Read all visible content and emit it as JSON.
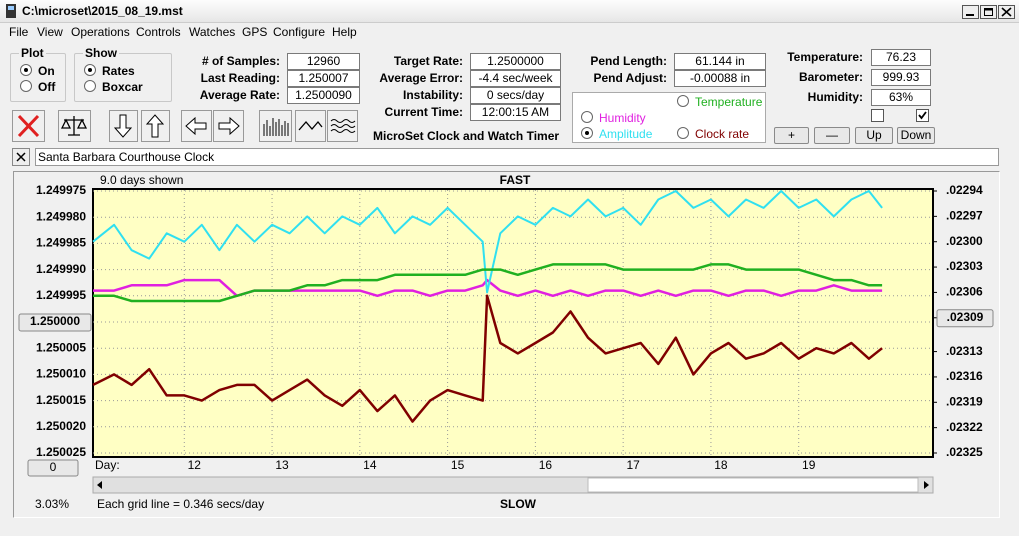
{
  "window": {
    "title": "C:\\microset\\2015_08_19.mst"
  },
  "menu": [
    "File",
    "View",
    "Operations",
    "Controls",
    "Watches",
    "GPS",
    "Configure",
    "Help"
  ],
  "plot_group": {
    "title": "Plot",
    "options": [
      "On",
      "Off"
    ]
  },
  "show_group": {
    "title": "Show",
    "options": [
      "Rates",
      "Boxcar"
    ]
  },
  "stats": [
    {
      "label": "# of Samples:",
      "value": "12960"
    },
    {
      "label": "Last Reading:",
      "value": "1.250007"
    },
    {
      "label": "Average Rate:",
      "value": "1.2500090"
    }
  ],
  "rates": [
    {
      "label": "Target Rate:",
      "value": "1.2500000"
    },
    {
      "label": "Average Error:",
      "value": "-4.4 sec/week"
    },
    {
      "label": "Instability:",
      "value": "0 secs/day"
    },
    {
      "label": "Current Time:",
      "value": "12:00:15 AM"
    }
  ],
  "pendulum": [
    {
      "label": "Pend Length:",
      "value": "61.144 in"
    },
    {
      "label": "Pend Adjust:",
      "value": "-0.00088 in"
    }
  ],
  "environment": [
    {
      "label": "Temperature:",
      "value": "76.23"
    },
    {
      "label": "Barometer:",
      "value": "999.93"
    },
    {
      "label": "Humidity:",
      "value": "63%"
    }
  ],
  "app_name": "MicroSet Clock and Watch Timer",
  "adjust_buttons": [
    "+",
    "—",
    "Up",
    "Down"
  ],
  "clock_name": "Santa Barbara Courthouse Clock",
  "chart_data": {
    "type": "line",
    "days_shown": "9.0 days shown",
    "top_label": "FAST",
    "bottom_label": "SLOW",
    "x_label": "Day:",
    "scale_percent": "3.03%",
    "grid_note": "Each grid line = 0.346 secs/day",
    "offset_button": "0",
    "xlim": [
      10.96,
      20.53
    ],
    "xticks": [
      12,
      13,
      14,
      15,
      16,
      17,
      18,
      19
    ],
    "ylim": [
      1.250025,
      1.249975
    ],
    "yticks": [
      1.249975,
      {
        "value": 1.24998,
        "label": "1.249980"
      },
      1.249985,
      {
        "value": 1.24999,
        "label": "1.249990"
      },
      1.249995,
      {
        "value": 1.25,
        "label": "1.250000"
      },
      1.250005,
      {
        "value": 1.25001,
        "label": "1.250010"
      },
      1.250015,
      {
        "value": 1.25002,
        "label": "1.250020"
      },
      1.250025
    ],
    "y2lim": [
      0.02325,
      0.02294
    ],
    "y2ticks": [
      {
        "value": 0.02294,
        "label": ".02294"
      },
      {
        "value": 0.02297,
        "label": ".02297"
      },
      {
        "value": 0.023,
        "label": ".02300"
      },
      {
        "value": 0.02303,
        "label": ".02303"
      },
      {
        "value": 0.02306,
        "label": ".02306"
      },
      {
        "value": 0.02309,
        "label": ".02309"
      },
      {
        "value": 0.02313,
        "label": ".02313"
      },
      {
        "value": 0.02316,
        "label": ".02316"
      },
      {
        "value": 0.02319,
        "label": ".02319"
      },
      {
        "value": 0.02322,
        "label": ".02322"
      },
      {
        "value": 0.02325,
        "label": ".02325"
      }
    ],
    "grid": true,
    "x": [
      10.96,
      11.2,
      11.4,
      11.6,
      11.8,
      12,
      12.2,
      12.4,
      12.6,
      12.8,
      13,
      13.2,
      13.4,
      13.6,
      13.8,
      14,
      14.2,
      14.4,
      14.6,
      14.8,
      15,
      15.2,
      15.4,
      15.45,
      15.6,
      15.8,
      16,
      16.2,
      16.4,
      16.6,
      16.8,
      17,
      17.2,
      17.4,
      17.6,
      17.8,
      18,
      18.2,
      18.4,
      18.6,
      18.8,
      19,
      19.2,
      19.4,
      19.6,
      19.8,
      19.95
    ],
    "series": [
      {
        "name": "Humidity",
        "color": "#e020e0",
        "axis": "y",
        "values": [
          1.249994,
          1.249994,
          1.249993,
          1.249993,
          1.249993,
          1.249992,
          1.249992,
          1.249992,
          1.249995,
          1.249994,
          1.249994,
          1.249994,
          1.249994,
          1.249994,
          1.249994,
          1.249994,
          1.249995,
          1.249994,
          1.249994,
          1.249995,
          1.249994,
          1.249994,
          1.249993,
          1.249992,
          1.249994,
          1.249995,
          1.249994,
          1.249995,
          1.249994,
          1.249995,
          1.249994,
          1.249994,
          1.249995,
          1.249994,
          1.249995,
          1.249994,
          1.249994,
          1.249995,
          1.249994,
          1.249994,
          1.249995,
          1.249994,
          1.249994,
          1.249993,
          1.249994,
          1.249994,
          1.249994
        ]
      },
      {
        "name": "Amplitude",
        "color": "#30e0f0",
        "axis": "y2",
        "values": [
          0.023,
          0.02298,
          0.02301,
          0.02302,
          0.02299,
          0.023,
          0.02298,
          0.02301,
          0.02298,
          0.023,
          0.02298,
          0.02299,
          0.02297,
          0.02299,
          0.02297,
          0.02298,
          0.02296,
          0.02299,
          0.02297,
          0.02298,
          0.02296,
          0.02298,
          0.023,
          0.02306,
          0.02299,
          0.02297,
          0.02298,
          0.02296,
          0.02297,
          0.02295,
          0.02297,
          0.02296,
          0.02298,
          0.02295,
          0.02294,
          0.02296,
          0.02295,
          0.02297,
          0.02295,
          0.02296,
          0.02294,
          0.02296,
          0.02295,
          0.02297,
          0.02295,
          0.02294,
          0.02296
        ]
      },
      {
        "name": "Temperature",
        "color": "#20b020",
        "axis": "y",
        "values": [
          1.249995,
          1.249995,
          1.249996,
          1.249996,
          1.249996,
          1.249996,
          1.249996,
          1.249996,
          1.249995,
          1.249994,
          1.249994,
          1.249994,
          1.249993,
          1.249993,
          1.249992,
          1.249992,
          1.249992,
          1.249991,
          1.249991,
          1.249991,
          1.249991,
          1.249991,
          1.24999,
          1.24999,
          1.24999,
          1.249991,
          1.24999,
          1.249989,
          1.249989,
          1.249989,
          1.249989,
          1.24999,
          1.24999,
          1.24999,
          1.24999,
          1.24999,
          1.249989,
          1.249989,
          1.24999,
          1.24999,
          1.24999,
          1.24999,
          1.249991,
          1.249992,
          1.249992,
          1.249993,
          1.249993
        ]
      },
      {
        "name": "Clock rate",
        "color": "#800000",
        "axis": "y",
        "values": [
          1.250012,
          1.25001,
          1.250012,
          1.250009,
          1.250014,
          1.250014,
          1.250015,
          1.250013,
          1.250012,
          1.250012,
          1.250015,
          1.250013,
          1.250011,
          1.250014,
          1.250016,
          1.250013,
          1.250017,
          1.250014,
          1.250019,
          1.250015,
          1.250013,
          1.250014,
          1.250015,
          1.249995,
          1.250004,
          1.250006,
          1.250004,
          1.250002,
          1.249998,
          1.250003,
          1.250006,
          1.250005,
          1.250004,
          1.250008,
          1.250003,
          1.25001,
          1.250006,
          1.250004,
          1.250007,
          1.250006,
          1.250004,
          1.250007,
          1.250005,
          1.250006,
          1.250004,
          1.250007,
          1.250005
        ]
      }
    ]
  }
}
